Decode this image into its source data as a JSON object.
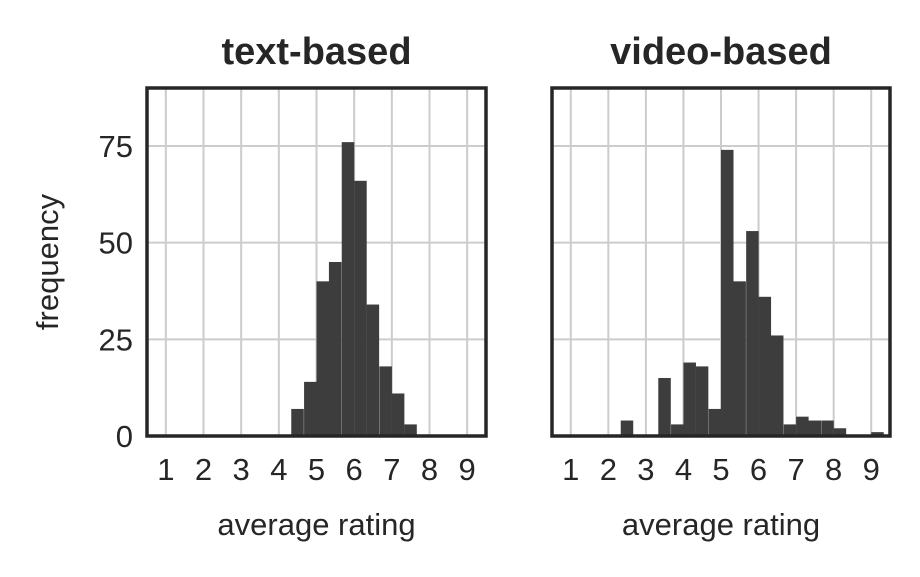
{
  "chart_data": [
    {
      "type": "bar",
      "title": "text-based",
      "xlabel": "average rating",
      "ylabel": "frequency",
      "xticks": [
        1,
        2,
        3,
        4,
        5,
        6,
        7,
        8,
        9
      ],
      "yticks": [
        0,
        25,
        50,
        75
      ],
      "xlim": [
        0.5,
        9.5
      ],
      "ylim": [
        0,
        90
      ],
      "grid": true,
      "bin_width": 0.333,
      "bins": [
        {
          "x0": 4.33,
          "count": 7
        },
        {
          "x0": 4.67,
          "count": 14
        },
        {
          "x0": 5.0,
          "count": 40
        },
        {
          "x0": 5.33,
          "count": 45
        },
        {
          "x0": 5.67,
          "count": 76
        },
        {
          "x0": 6.0,
          "count": 66
        },
        {
          "x0": 6.33,
          "count": 34
        },
        {
          "x0": 6.67,
          "count": 18
        },
        {
          "x0": 7.0,
          "count": 11
        },
        {
          "x0": 7.33,
          "count": 3
        }
      ]
    },
    {
      "type": "bar",
      "title": "video-based",
      "xlabel": "average rating",
      "ylabel": "",
      "xticks": [
        1,
        2,
        3,
        4,
        5,
        6,
        7,
        8,
        9
      ],
      "yticks": [
        0,
        25,
        50,
        75
      ],
      "xlim": [
        0.5,
        9.5
      ],
      "ylim": [
        0,
        90
      ],
      "grid": true,
      "bin_width": 0.333,
      "bins": [
        {
          "x0": 2.33,
          "count": 4
        },
        {
          "x0": 3.33,
          "count": 15
        },
        {
          "x0": 3.67,
          "count": 3
        },
        {
          "x0": 4.0,
          "count": 19
        },
        {
          "x0": 4.33,
          "count": 18
        },
        {
          "x0": 4.67,
          "count": 7
        },
        {
          "x0": 5.0,
          "count": 74
        },
        {
          "x0": 5.33,
          "count": 40
        },
        {
          "x0": 5.67,
          "count": 53
        },
        {
          "x0": 6.0,
          "count": 36
        },
        {
          "x0": 6.33,
          "count": 26
        },
        {
          "x0": 6.67,
          "count": 3
        },
        {
          "x0": 7.0,
          "count": 5
        },
        {
          "x0": 7.33,
          "count": 4
        },
        {
          "x0": 7.67,
          "count": 4
        },
        {
          "x0": 8.0,
          "count": 2
        },
        {
          "x0": 8.33,
          "count": 0
        },
        {
          "x0": 8.67,
          "count": 0
        },
        {
          "x0": 9.0,
          "count": 1
        }
      ]
    }
  ],
  "colors": {
    "bar": "#3d3d3d",
    "grid": "#cccccc",
    "axes": "#262626"
  }
}
